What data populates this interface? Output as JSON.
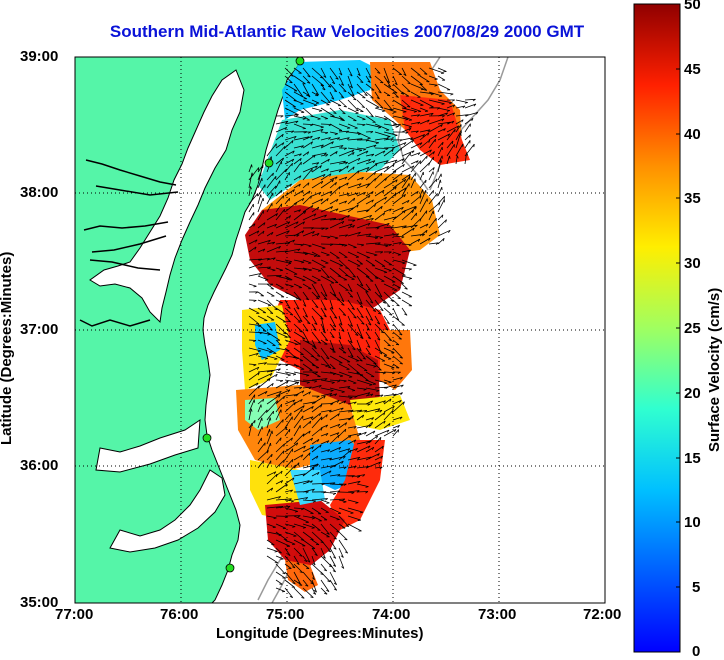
{
  "title": "Southern Mid-Atlantic Raw Velocities 2007/08/29 2000 GMT",
  "axes": {
    "xlabel": "Longitude (Degrees:Minutes)",
    "ylabel": "Latitude (Degrees:Minutes)",
    "x_ticks": [
      "77:00",
      "76:00",
      "75:00",
      "74:00",
      "73:00",
      "72:00"
    ],
    "y_ticks": [
      "39:00",
      "38:00",
      "37:00",
      "36:00",
      "35:00"
    ],
    "xlim": [
      -77,
      -72
    ],
    "ylim": [
      35,
      39
    ],
    "grid": "dotted"
  },
  "colorbar": {
    "label": "Surface Velocity (cm/s)",
    "ticks": [
      "50",
      "45",
      "40",
      "35",
      "30",
      "25",
      "20",
      "15",
      "10",
      "5",
      "0"
    ],
    "range": [
      0,
      50
    ],
    "colormap": "jet"
  },
  "colors": {
    "land": "#55f5a8",
    "title": "#0a13d8",
    "coast_outline": "#000000",
    "bathymetry": "#9a9a9a",
    "station": "#22dd22"
  },
  "map_features": {
    "land": "Delmarva Peninsula, Chesapeake Bay, Virginia and North Carolina coast",
    "vectors": "black velocity arrows",
    "stations": "green dots along coast"
  }
}
